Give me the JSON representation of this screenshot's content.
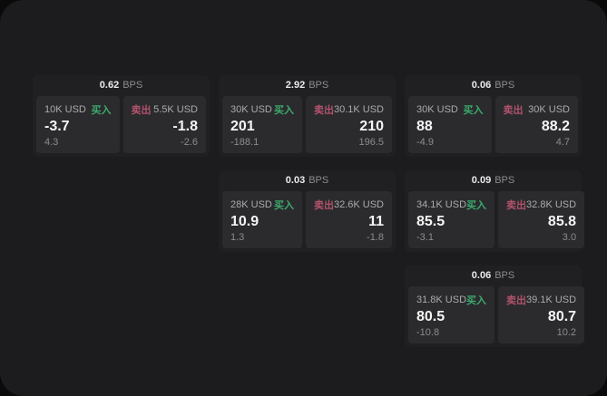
{
  "labels": {
    "bps_unit": "BPS",
    "buy": "买入",
    "sell": "卖出"
  },
  "colors": {
    "page_bg": "#0a0a0a",
    "window_bg": "#1c1c1e",
    "card_bg": "#202023",
    "panel_bg": "#2b2b2e",
    "buy": "#3bab6c",
    "sell": "#b0526a",
    "label_text": "#ababab",
    "muted_text": "#8c8c8c"
  },
  "cards": [
    {
      "bps": "0.62",
      "buy": {
        "amount": "10K USD",
        "price": "-3.7",
        "delta": "4.3"
      },
      "sell": {
        "amount": "5.5K USD",
        "price": "-1.8",
        "delta": "-2.6"
      }
    },
    {
      "bps": "2.92",
      "buy": {
        "amount": "30K USD",
        "price": "201",
        "delta": "-188.1"
      },
      "sell": {
        "amount": "30.1K USD",
        "price": "210",
        "delta": "196.5"
      }
    },
    {
      "bps": "0.06",
      "buy": {
        "amount": "30K USD",
        "price": "88",
        "delta": "-4.9"
      },
      "sell": {
        "amount": "30K USD",
        "price": "88.2",
        "delta": "4.7"
      }
    },
    {
      "bps": "0.03",
      "buy": {
        "amount": "28K USD",
        "price": "10.9",
        "delta": "1.3"
      },
      "sell": {
        "amount": "32.6K USD",
        "price": "11",
        "delta": "-1.8"
      }
    },
    {
      "bps": "0.09",
      "buy": {
        "amount": "34.1K USD",
        "price": "85.5",
        "delta": "-3.1"
      },
      "sell": {
        "amount": "32.8K USD",
        "price": "85.8",
        "delta": "3.0"
      }
    },
    {
      "bps": "0.06",
      "buy": {
        "amount": "31.8K USD",
        "price": "80.5",
        "delta": "-10.8"
      },
      "sell": {
        "amount": "39.1K USD",
        "price": "80.7",
        "delta": "10.2"
      }
    }
  ]
}
